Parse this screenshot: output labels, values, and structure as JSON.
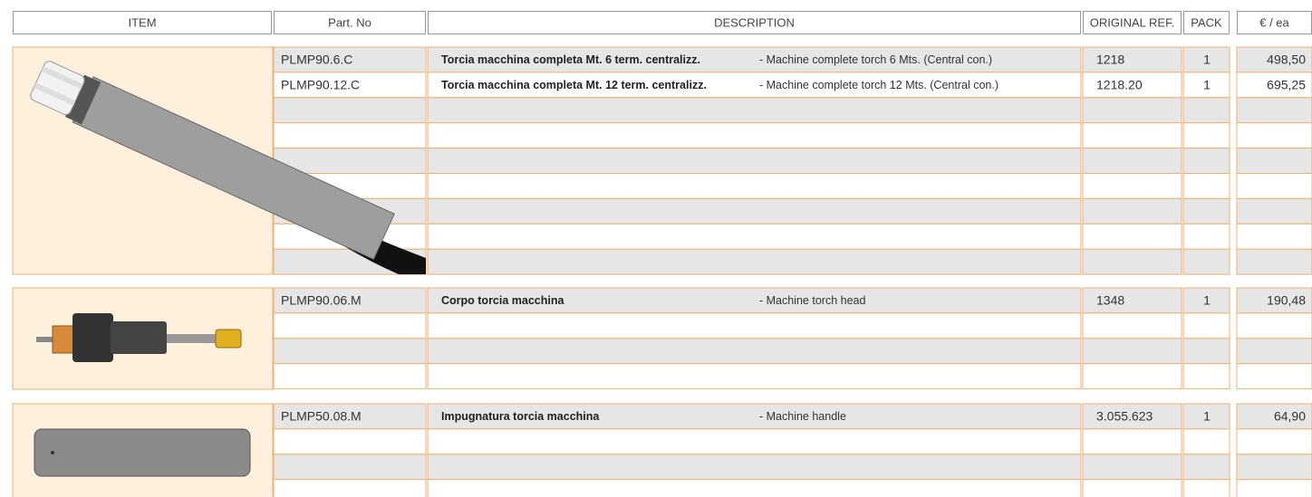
{
  "header": [
    "ITEM",
    "Part. No",
    "DESCRIPTION",
    "ORIGINAL REF.",
    "PACK",
    "€ / ea"
  ],
  "groups": [
    {
      "rows": [
        {
          "part": "PLMP90.6.C",
          "desc_it": "Torcia macchina completa Mt. 6 term. centralizz.",
          "desc_en": "- Machine complete torch 6 Mts. (Central con.)",
          "ref": "1218",
          "pack": 1,
          "price": "498,50"
        },
        {
          "part": "PLMP90.12.C",
          "desc_it": "Torcia macchina completa Mt. 12 term. centralizz.",
          "desc_en": "- Machine complete torch 12 Mts. (Central con.)",
          "ref": "1218.20",
          "pack": 1,
          "price": "695,25"
        }
      ]
    },
    {
      "rows": [
        {
          "part": "PLMP90.06.M",
          "desc_it": "Corpo torcia macchina",
          "desc_en": "- Machine torch head",
          "ref": "1348",
          "pack": 1,
          "price": "190,48"
        }
      ]
    },
    {
      "rows": [
        {
          "part": "PLMP50.08.M",
          "desc_it": "Impugnatura torcia macchina",
          "desc_en": "- Machine handle",
          "ref": "3.055.623",
          "pack": 1,
          "price": "64,90"
        }
      ]
    }
  ]
}
